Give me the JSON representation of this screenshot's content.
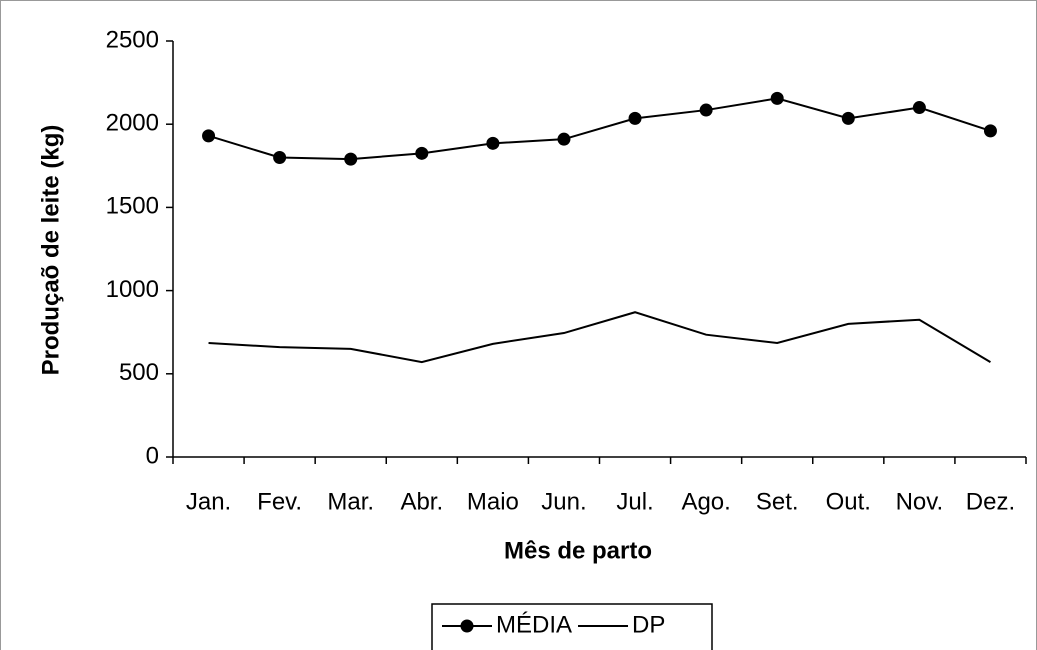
{
  "chart_data": {
    "type": "line",
    "x_label": "Mês de parto",
    "y_label": "Produçaõ de leite (kg)",
    "categories": [
      "Jan.",
      "Fev.",
      "Mar.",
      "Abr.",
      "Maio",
      "Jun.",
      "Jul.",
      "Ago.",
      "Set.",
      "Out.",
      "Nov.",
      "Dez."
    ],
    "series": [
      {
        "name": "MÉDIA",
        "color": "#000000",
        "marker": "circle",
        "values": [
          1930,
          1800,
          1790,
          1825,
          1885,
          1910,
          2035,
          2085,
          2155,
          2035,
          2100,
          1960
        ]
      },
      {
        "name": "DP",
        "color": "#000000",
        "marker": "none",
        "values": [
          685,
          660,
          650,
          570,
          680,
          745,
          870,
          735,
          685,
          800,
          825,
          570
        ]
      }
    ],
    "ylim": [
      0,
      2500
    ],
    "yticks": [
      0,
      500,
      1000,
      1500,
      2000,
      2500
    ],
    "grid": false,
    "legend": "bottom"
  }
}
